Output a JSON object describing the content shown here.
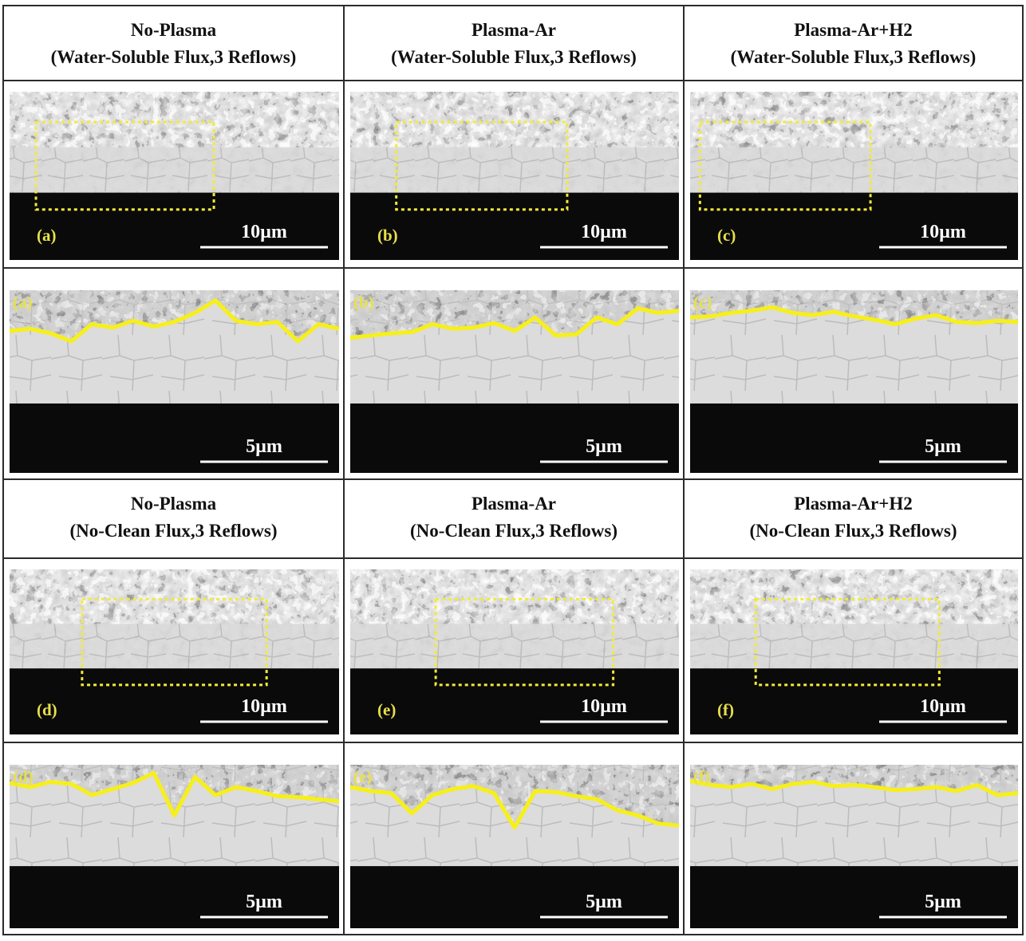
{
  "colors": {
    "roi_box": "#f2ea3a",
    "interface_line": "#f7ef1a",
    "panel_label": "#e8e04a",
    "scale_bar": "#ffffff",
    "grid_border": "#2b2b2b",
    "substrate": "#0a0a0a"
  },
  "sections": [
    {
      "headers": [
        {
          "line1": "No-Plasma",
          "line2": "(Water-Soluble Flux,3 Reflows)"
        },
        {
          "line1": "Plasma-Ar",
          "line2": "(Water-Soluble Flux,3 Reflows)"
        },
        {
          "line1": "Plasma-Ar+H2",
          "line2": "(Water-Soluble Flux,3 Reflows)"
        }
      ],
      "overview_panels": [
        {
          "label": "(a)",
          "scale": "10µm"
        },
        {
          "label": "(b)",
          "scale": "10µm"
        },
        {
          "label": "(c)",
          "scale": "10µm"
        }
      ],
      "zoom_panels": [
        {
          "label": "(a)",
          "scale": "5µm"
        },
        {
          "label": "(b)",
          "scale": "5µm"
        },
        {
          "label": "(c)",
          "scale": "5µm"
        }
      ]
    },
    {
      "headers": [
        {
          "line1": "No-Plasma",
          "line2": "(No-Clean Flux,3 Reflows)"
        },
        {
          "line1": "Plasma-Ar",
          "line2": "(No-Clean Flux,3 Reflows)"
        },
        {
          "line1": "Plasma-Ar+H2",
          "line2": "(No-Clean Flux,3 Reflows)"
        }
      ],
      "overview_panels": [
        {
          "label": "(d)",
          "scale": "10µm"
        },
        {
          "label": "(e)",
          "scale": "10µm"
        },
        {
          "label": "(f)",
          "scale": "10µm"
        }
      ],
      "zoom_panels": [
        {
          "label": "(d)",
          "scale": "5µm"
        },
        {
          "label": "(e)",
          "scale": "5µm"
        },
        {
          "label": "(f)",
          "scale": "5µm"
        }
      ]
    }
  ]
}
